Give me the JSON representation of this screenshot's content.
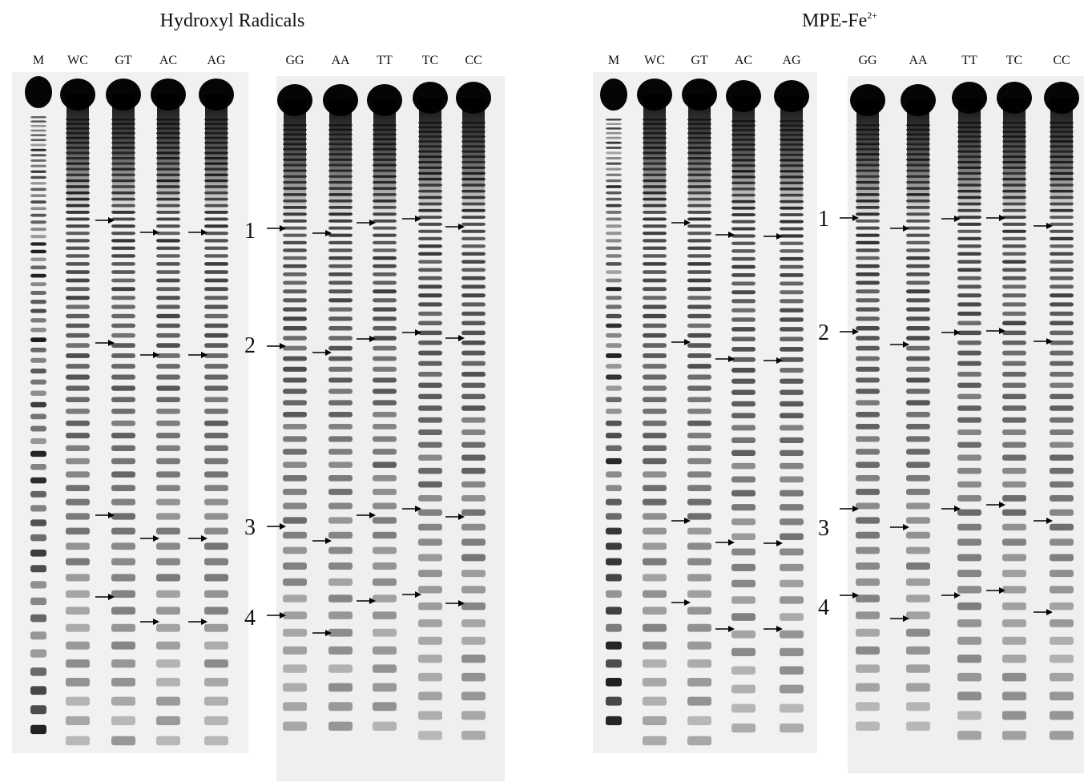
{
  "panels": [
    {
      "title": "Hydroxyl Radicals",
      "lanes": [
        "M",
        "WC",
        "GT",
        "AC",
        "AG",
        "GG",
        "AA",
        "TT",
        "TC",
        "CC"
      ],
      "markers": [
        "1",
        "2",
        "3",
        "4"
      ]
    },
    {
      "title": "MPE-Fe",
      "title_superscript": "2+",
      "lanes": [
        "M",
        "WC",
        "GT",
        "AC",
        "AG",
        "GG",
        "AA",
        "TT",
        "TC",
        "CC"
      ],
      "markers": [
        "1",
        "2",
        "3",
        "4"
      ]
    }
  ]
}
